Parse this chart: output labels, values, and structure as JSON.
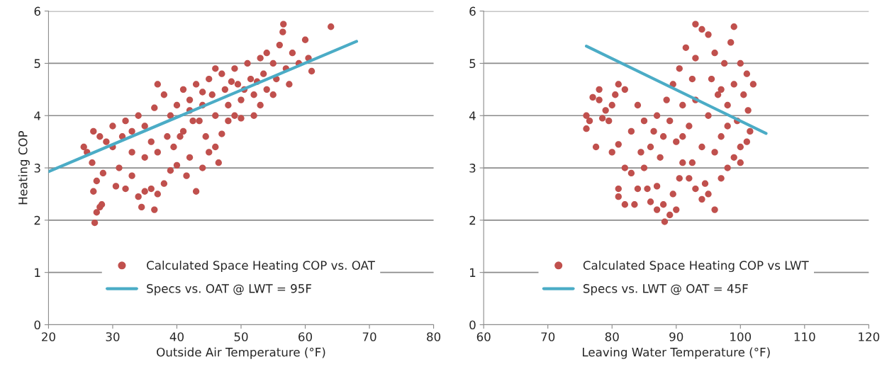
{
  "chart_data": [
    {
      "type": "scatter",
      "xlabel": "Outside Air Temperature (°F)",
      "ylabel": "Heating COP",
      "xlim": [
        20,
        80
      ],
      "xticks": [
        20,
        30,
        40,
        50,
        60,
        70,
        80
      ],
      "ylim": [
        0,
        6
      ],
      "yticks": [
        0,
        1,
        2,
        3,
        4,
        5,
        6
      ],
      "grid": "y",
      "legend": "bottom",
      "series": [
        {
          "name": "Calculated Space Heating COP vs. OAT",
          "marker": "circle",
          "color": "#c0504d",
          "x": [
            27.2,
            27.5,
            28,
            28.3,
            27,
            27.5,
            28.5,
            26.8,
            26,
            25.5,
            27,
            28,
            29,
            30,
            31,
            30.5,
            32,
            33,
            34,
            34.5,
            35,
            36.5,
            36,
            37,
            38,
            39,
            40,
            41.5,
            42,
            43,
            44,
            45,
            46,
            46.5,
            44.5,
            47,
            48,
            49,
            50,
            52,
            53,
            54,
            50.5,
            30,
            32,
            33,
            34,
            35,
            36,
            36.5,
            38,
            39,
            40,
            40.5,
            41,
            42,
            42.5,
            43,
            44,
            45,
            45.5,
            46,
            47,
            47.5,
            48,
            49,
            49.5,
            50,
            51,
            51.5,
            52,
            53,
            53.5,
            54,
            55,
            55.5,
            56,
            56.5,
            56.6,
            57,
            58,
            59,
            60,
            61,
            60.5,
            64,
            37,
            38.5,
            39.5,
            41,
            43.5,
            35,
            33,
            31.5,
            37,
            55,
            57.5,
            52.5,
            48.5,
            46,
            44,
            42
          ],
          "values": [
            1.95,
            2.15,
            2.25,
            2.3,
            2.55,
            2.75,
            2.9,
            3.1,
            3.3,
            3.4,
            3.7,
            3.6,
            3.5,
            3.4,
            3.0,
            2.65,
            2.6,
            2.85,
            2.45,
            2.25,
            2.55,
            2.2,
            2.6,
            2.5,
            2.7,
            2.95,
            3.05,
            2.85,
            3.2,
            2.55,
            3.0,
            3.3,
            3.4,
            3.1,
            3.6,
            3.65,
            3.9,
            4.0,
            3.95,
            4.0,
            4.2,
            4.5,
            4.5,
            3.8,
            3.9,
            3.7,
            4.0,
            3.8,
            3.5,
            4.15,
            4.4,
            4.0,
            4.2,
            3.6,
            4.5,
            4.3,
            3.9,
            4.6,
            4.2,
            4.7,
            4.4,
            4.0,
            4.8,
            4.5,
            4.2,
            4.9,
            4.6,
            4.3,
            5.0,
            4.7,
            4.4,
            5.1,
            4.8,
            5.2,
            5.0,
            4.7,
            5.35,
            5.6,
            5.75,
            4.9,
            5.2,
            5.0,
            5.45,
            4.85,
            5.1,
            5.7,
            3.3,
            3.6,
            3.4,
            3.7,
            3.9,
            3.2,
            3.3,
            3.6,
            4.6,
            4.4,
            4.6,
            4.65,
            4.65,
            4.9,
            4.45,
            4.1
          ]
        },
        {
          "name": "Specs vs. OAT @ LWT = 95F",
          "type": "line",
          "color": "#4bacc6",
          "x": [
            20,
            68
          ],
          "values": [
            2.93,
            5.42
          ]
        }
      ]
    },
    {
      "type": "scatter",
      "xlabel": "Leaving Water Temperature (°F)",
      "xlim": [
        60,
        120
      ],
      "xticks": [
        60,
        70,
        80,
        90,
        100,
        110,
        120
      ],
      "ylim": [
        0,
        6
      ],
      "yticks": [
        0,
        1,
        2,
        3,
        4,
        5,
        6
      ],
      "grid": "y",
      "legend": "bottom",
      "series": [
        {
          "name": "Calculated Space Heating COP vs LWT",
          "marker": "circle",
          "color": "#c0504d",
          "x": [
            76,
            76,
            76.5,
            77,
            78,
            78,
            77.5,
            79,
            79.5,
            78.5,
            80,
            80.5,
            81,
            82,
            80,
            81,
            83,
            82,
            81,
            81,
            82,
            83.5,
            84,
            83,
            84.5,
            85,
            85.5,
            86,
            87,
            87,
            88,
            88.2,
            89,
            89.5,
            90,
            90.5,
            91,
            92,
            93,
            94,
            94.5,
            95,
            96,
            97,
            98,
            99,
            100,
            101,
            86,
            86.5,
            87,
            88,
            88.5,
            89,
            89.5,
            90,
            90.5,
            91,
            91.5,
            92,
            92.5,
            93,
            93,
            94,
            95,
            96,
            96.5,
            97,
            97.5,
            98,
            98.5,
            99,
            99,
            99.5,
            100,
            100.5,
            101,
            101.2,
            101.5,
            102,
            100,
            96,
            94,
            93,
            95,
            91,
            92.5,
            87.5,
            85,
            84,
            95.5,
            97,
            98
          ],
          "values": [
            3.75,
            4.0,
            3.9,
            4.35,
            4.3,
            4.5,
            3.4,
            4.1,
            3.9,
            3.95,
            4.2,
            4.4,
            4.6,
            4.5,
            3.3,
            3.45,
            3.7,
            3.0,
            2.6,
            2.45,
            2.3,
            2.3,
            2.6,
            2.9,
            3.3,
            3.0,
            2.6,
            2.35,
            2.2,
            2.65,
            2.3,
            1.97,
            2.1,
            2.5,
            2.2,
            2.8,
            3.1,
            2.8,
            2.6,
            2.4,
            2.7,
            2.5,
            2.2,
            2.8,
            3.0,
            3.2,
            3.1,
            3.5,
            3.4,
            3.7,
            4.0,
            3.6,
            4.3,
            3.9,
            4.6,
            3.5,
            4.9,
            4.2,
            5.3,
            3.8,
            4.7,
            5.1,
            5.75,
            5.65,
            5.55,
            5.2,
            4.4,
            3.6,
            5.0,
            4.2,
            5.4,
            5.7,
            4.6,
            3.9,
            5.0,
            4.4,
            4.8,
            4.1,
            3.7,
            4.6,
            3.4,
            3.3,
            3.4,
            4.3,
            4.0,
            3.6,
            3.1,
            3.2,
            3.9,
            4.2,
            4.7,
            4.5,
            3.8
          ]
        },
        {
          "name": "Specs vs. LWT @ OAT = 45F",
          "type": "line",
          "color": "#4bacc6",
          "x": [
            76,
            104
          ],
          "values": [
            5.33,
            3.66
          ]
        }
      ]
    }
  ]
}
